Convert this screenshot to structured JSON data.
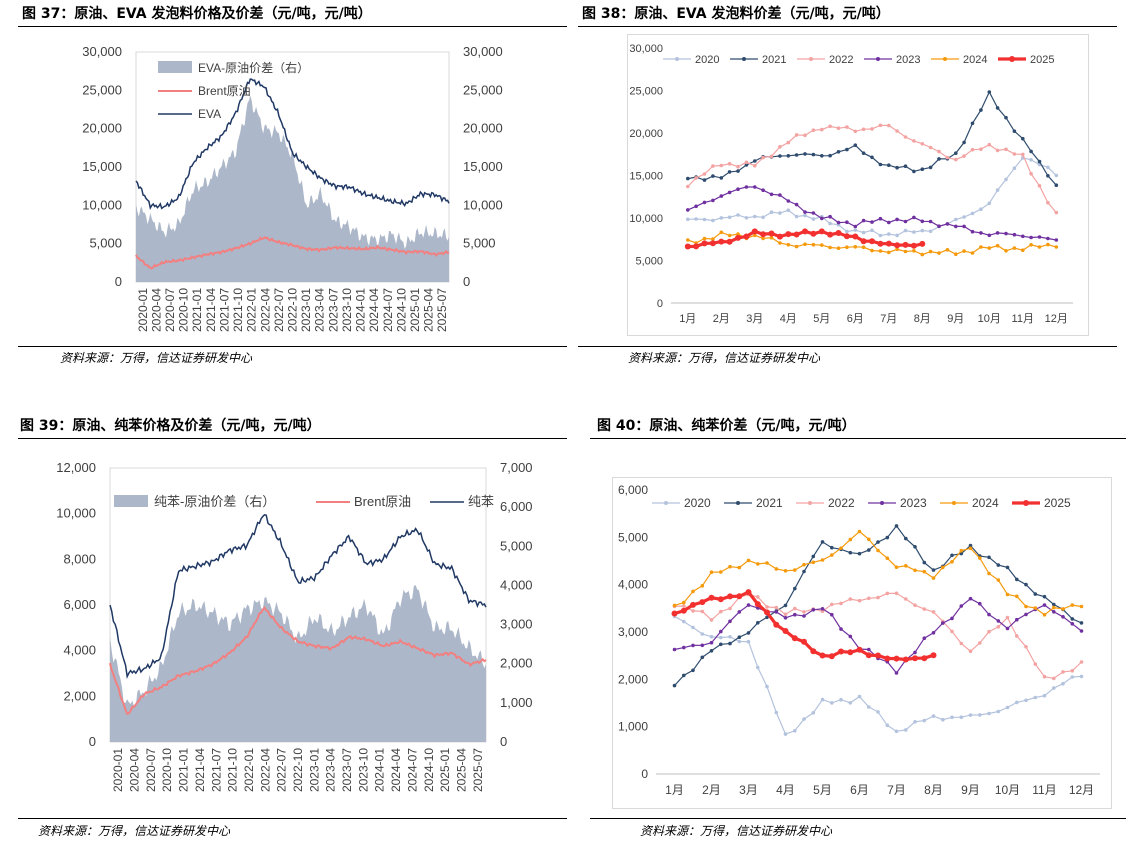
{
  "figures": [
    {
      "title": "图 37：原油、EVA 发泡料价格及价差（元/吨，元/吨）",
      "source": "资料来源：万得，信达证券研发中心"
    },
    {
      "title": "图 38：原油、EVA 发泡料价差（元/吨，元/吨）",
      "source": "资料来源：万得，信达证券研发中心"
    },
    {
      "title": "图 39：原油、纯苯价格及价差（元/吨，元/吨）",
      "source": "资料来源：万得，信达证券研发中心"
    },
    {
      "title": "图 40：原油、纯苯价差（元/吨，元/吨）",
      "source": "资料来源：万得，信达证券研发中心"
    }
  ],
  "colors": {
    "spread": "#acb7c9",
    "brent": "#f28080",
    "product": "#203864",
    "y2020": "#b4c3dd",
    "y2021": "#2f4c6e",
    "y2022": "#f4a3a3",
    "y2023": "#7030a0",
    "y2024": "#f59a0c",
    "y2025": "#f23030"
  },
  "chart_data": [
    {
      "type": "area+line",
      "title": "原油、EVA 发泡料价格及价差",
      "legend": [
        "EVA-原油价差（右）",
        "Brent原油",
        "EVA"
      ],
      "ylim_left": [
        0,
        30000
      ],
      "ylim_right": [
        0,
        30000
      ],
      "yticks_left": [
        "0",
        "5,000",
        "10,000",
        "15,000",
        "20,000",
        "25,000",
        "30,000"
      ],
      "yticks_right": [
        "0",
        "5,000",
        "10,000",
        "15,000",
        "20,000",
        "25,000",
        "30,000"
      ],
      "xticks": [
        "2020-01",
        "2020-04",
        "2020-07",
        "2020-10",
        "2021-01",
        "2021-04",
        "2021-07",
        "2021-10",
        "2022-01",
        "2022-04",
        "2022-07",
        "2022-10",
        "2023-01",
        "2023-04",
        "2023-07",
        "2023-10",
        "2024-01",
        "2024-04",
        "2024-07",
        "2024-10",
        "2025-01",
        "2025-04",
        "2025-07"
      ],
      "series": [
        {
          "name": "EVA-原油价差（右）",
          "kind": "area",
          "axis": "right",
          "values": [
            9800,
            8200,
            6500,
            7500,
            12000,
            13000,
            15000,
            17000,
            24000,
            20000,
            19500,
            16500,
            10000,
            11500,
            8000,
            7200,
            5800,
            5500,
            6200,
            5000,
            6500,
            6300,
            6000
          ]
        },
        {
          "name": "Brent原油",
          "kind": "line",
          "axis": "left",
          "values": [
            3400,
            1800,
            2600,
            2800,
            3200,
            3600,
            3900,
            4400,
            5000,
            5800,
            5200,
            4800,
            4300,
            4200,
            4500,
            4400,
            4300,
            4500,
            4200,
            3900,
            4000,
            3600,
            3900
          ]
        },
        {
          "name": "EVA",
          "kind": "line",
          "axis": "left",
          "values": [
            13200,
            10000,
            9800,
            11000,
            15500,
            17500,
            19000,
            22000,
            26500,
            25500,
            22000,
            16800,
            15000,
            13500,
            12500,
            12400,
            11500,
            11000,
            10500,
            10200,
            11500,
            11400,
            10500
          ]
        }
      ]
    },
    {
      "type": "line",
      "title": "原油、EVA 发泡料价差",
      "legend": [
        "2020",
        "2021",
        "2022",
        "2023",
        "2024",
        "2025"
      ],
      "ylim": [
        0,
        30000
      ],
      "yticks": [
        "0",
        "5,000",
        "10,000",
        "15,000",
        "20,000",
        "25,000",
        "30,000"
      ],
      "xticks": [
        "1月",
        "2月",
        "3月",
        "4月",
        "5月",
        "6月",
        "7月",
        "8月",
        "9月",
        "10月",
        "11月",
        "12月"
      ],
      "series": [
        {
          "name": "2020",
          "values": [
            9700,
            10000,
            10200,
            10700,
            9800,
            8400,
            8100,
            8400,
            9600,
            11700,
            17300,
            15200
          ]
        },
        {
          "name": "2021",
          "values": [
            14800,
            14700,
            16800,
            17500,
            17300,
            18300,
            16000,
            15700,
            17500,
            24500,
            19100,
            13900
          ]
        },
        {
          "name": "2022",
          "values": [
            14000,
            16400,
            16200,
            19000,
            20700,
            20400,
            20800,
            18600,
            16900,
            18600,
            17200,
            10300
          ]
        },
        {
          "name": "2023",
          "values": [
            10800,
            12700,
            13800,
            12000,
            10000,
            9300,
            9800,
            9700,
            9000,
            8100,
            8000,
            7300
          ]
        },
        {
          "name": "2024",
          "values": [
            7100,
            8000,
            7900,
            6900,
            6700,
            6500,
            6100,
            6000,
            5900,
            6500,
            6400,
            6900
          ]
        },
        {
          "name": "2025",
          "values": [
            6700,
            7100,
            8200,
            8000,
            8400,
            7700,
            6800,
            6900,
            null,
            null,
            null,
            null
          ]
        }
      ]
    },
    {
      "type": "area+line",
      "title": "原油、纯苯价格及价差",
      "legend": [
        "纯苯-原油价差（右）",
        "Brent原油",
        "纯苯"
      ],
      "ylim_left": [
        0,
        12000
      ],
      "ylim_right": [
        0,
        7000
      ],
      "yticks_left": [
        "0",
        "2,000",
        "4,000",
        "6,000",
        "8,000",
        "10,000",
        "12,000"
      ],
      "yticks_right": [
        "0",
        "1,000",
        "2,000",
        "3,000",
        "4,000",
        "5,000",
        "6,000",
        "7,000"
      ],
      "xticks": [
        "2020-01",
        "2020-04",
        "2020-07",
        "2020-10",
        "2021-01",
        "2021-04",
        "2021-07",
        "2021-10",
        "2022-01",
        "2022-04",
        "2022-07",
        "2022-10",
        "2023-01",
        "2023-04",
        "2023-07",
        "2023-10",
        "2024-01",
        "2024-04",
        "2024-07",
        "2024-10",
        "2025-01",
        "2025-04",
        "2025-07"
      ],
      "series": [
        {
          "name": "纯苯-原油价差（右）",
          "kind": "area",
          "axis": "right",
          "values": [
            2600,
            900,
            1300,
            1900,
            3300,
            3500,
            3300,
            3000,
            3400,
            3600,
            3300,
            2600,
            3200,
            2800,
            3200,
            3500,
            2700,
            3700,
            3900,
            2900,
            2900,
            2400,
            2000
          ]
        },
        {
          "name": "Brent原油",
          "kind": "line",
          "axis": "left",
          "values": [
            3400,
            1200,
            2100,
            2400,
            2900,
            3100,
            3400,
            3900,
            4600,
            5900,
            5000,
            4400,
            4200,
            4100,
            4600,
            4500,
            4200,
            4400,
            4100,
            3800,
            3900,
            3400,
            3600
          ]
        },
        {
          "name": "纯苯",
          "kind": "line",
          "axis": "left",
          "values": [
            6000,
            3000,
            3200,
            3700,
            7500,
            7700,
            7900,
            8400,
            8600,
            10000,
            8700,
            7000,
            7200,
            8200,
            9000,
            7800,
            8000,
            9000,
            9300,
            7800,
            7600,
            6200,
            6000
          ]
        }
      ]
    },
    {
      "type": "line",
      "title": "原油、纯苯价差",
      "legend": [
        "2020",
        "2021",
        "2022",
        "2023",
        "2024",
        "2025"
      ],
      "ylim": [
        0,
        6000
      ],
      "yticks": [
        "0",
        "1,000",
        "2,000",
        "3,000",
        "4,000",
        "5,000",
        "6,000"
      ],
      "xticks": [
        "1月",
        "2月",
        "3月",
        "4月",
        "5月",
        "6月",
        "7月",
        "8月",
        "9月",
        "10月",
        "11月",
        "12月"
      ],
      "series": [
        {
          "name": "2020",
          "values": [
            3300,
            2900,
            2800,
            800,
            1500,
            1600,
            900,
            1200,
            1200,
            1400,
            1700,
            2100
          ]
        },
        {
          "name": "2021",
          "values": [
            1900,
            2600,
            3000,
            3600,
            4900,
            4600,
            5200,
            4300,
            4800,
            4300,
            3700,
            3200
          ]
        },
        {
          "name": "2022",
          "values": [
            3600,
            3300,
            3800,
            3400,
            3500,
            3700,
            3800,
            3400,
            2600,
            3300,
            2000,
            2300
          ]
        },
        {
          "name": "2023",
          "values": [
            2600,
            2800,
            3600,
            3300,
            3500,
            2700,
            2200,
            3000,
            3700,
            3100,
            3600,
            3000
          ]
        },
        {
          "name": "2024",
          "values": [
            3500,
            4200,
            4500,
            4300,
            4500,
            5100,
            4400,
            4200,
            4800,
            3800,
            3400,
            3600
          ]
        },
        {
          "name": "2025",
          "values": [
            3400,
            3700,
            3800,
            3000,
            2500,
            2600,
            2400,
            2500,
            null,
            null,
            null,
            null
          ]
        }
      ]
    }
  ]
}
